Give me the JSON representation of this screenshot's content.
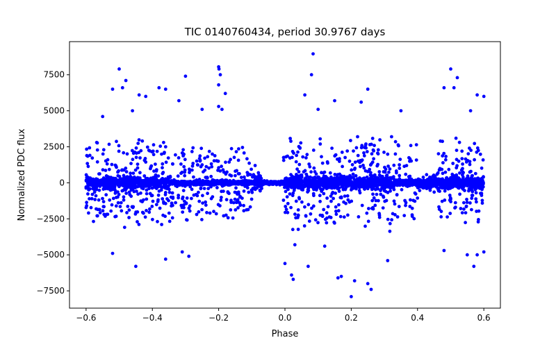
{
  "chart_data": {
    "type": "scatter",
    "title": "TIC 0140760434, period 30.9767 days",
    "xlabel": "Phase",
    "ylabel": "Normalized PDC flux",
    "xlim": [
      -0.65,
      0.65
    ],
    "ylim": [
      -8700,
      9800
    ],
    "x_ticks": [
      -0.6,
      -0.4,
      -0.2,
      0.0,
      0.2,
      0.4,
      0.6
    ],
    "x_tick_labels": [
      "−0.6",
      "−0.4",
      "−0.2",
      "0.0",
      "0.2",
      "0.4",
      "0.6"
    ],
    "y_ticks": [
      -7500,
      -5000,
      -2500,
      0,
      2500,
      5000,
      7500
    ],
    "y_tick_labels": [
      "−7500",
      "−5000",
      "−2500",
      "0",
      "2500",
      "5000",
      "7500"
    ],
    "grid": false,
    "marker_color": "#0000ff",
    "series": [
      {
        "name": "outliers",
        "points": [
          [
            -0.5,
            7900
          ],
          [
            -0.48,
            7100
          ],
          [
            -0.52,
            6500
          ],
          [
            -0.49,
            6600
          ],
          [
            -0.46,
            5000
          ],
          [
            -0.44,
            6100
          ],
          [
            -0.42,
            6000
          ],
          [
            -0.38,
            6600
          ],
          [
            -0.36,
            6500
          ],
          [
            -0.3,
            7400
          ],
          [
            -0.2,
            8050
          ],
          [
            -0.199,
            7900
          ],
          [
            -0.195,
            7500
          ],
          [
            -0.2,
            6800
          ],
          [
            -0.18,
            6200
          ],
          [
            -0.2,
            5300
          ],
          [
            -0.19,
            5100
          ],
          [
            -0.25,
            5100
          ],
          [
            -0.32,
            5700
          ],
          [
            -0.55,
            4600
          ],
          [
            0.085,
            8950
          ],
          [
            0.08,
            7500
          ],
          [
            0.06,
            6100
          ],
          [
            0.1,
            5100
          ],
          [
            0.15,
            5700
          ],
          [
            0.25,
            6500
          ],
          [
            0.23,
            5600
          ],
          [
            0.35,
            5000
          ],
          [
            0.5,
            7900
          ],
          [
            0.52,
            7300
          ],
          [
            0.51,
            6600
          ],
          [
            0.48,
            6600
          ],
          [
            0.58,
            6100
          ],
          [
            0.6,
            6000
          ],
          [
            0.56,
            5000
          ],
          [
            -0.52,
            -4900
          ],
          [
            -0.45,
            -5800
          ],
          [
            -0.36,
            -5300
          ],
          [
            -0.29,
            -5100
          ],
          [
            -0.31,
            -4800
          ],
          [
            0.0,
            -5600
          ],
          [
            0.02,
            -6400
          ],
          [
            0.025,
            -6700
          ],
          [
            0.07,
            -5800
          ],
          [
            0.16,
            -6600
          ],
          [
            0.17,
            -6500
          ],
          [
            0.2,
            -7900
          ],
          [
            0.21,
            -6800
          ],
          [
            0.25,
            -7000
          ],
          [
            0.26,
            -7400
          ],
          [
            0.31,
            -5400
          ],
          [
            0.48,
            -4700
          ],
          [
            0.55,
            -5000
          ],
          [
            0.57,
            -5800
          ],
          [
            0.58,
            -5000
          ],
          [
            0.6,
            -4800
          ],
          [
            0.03,
            -4300
          ],
          [
            0.12,
            -4400
          ],
          [
            -0.09,
            1200
          ],
          [
            -0.08,
            700
          ]
        ]
      }
    ]
  }
}
